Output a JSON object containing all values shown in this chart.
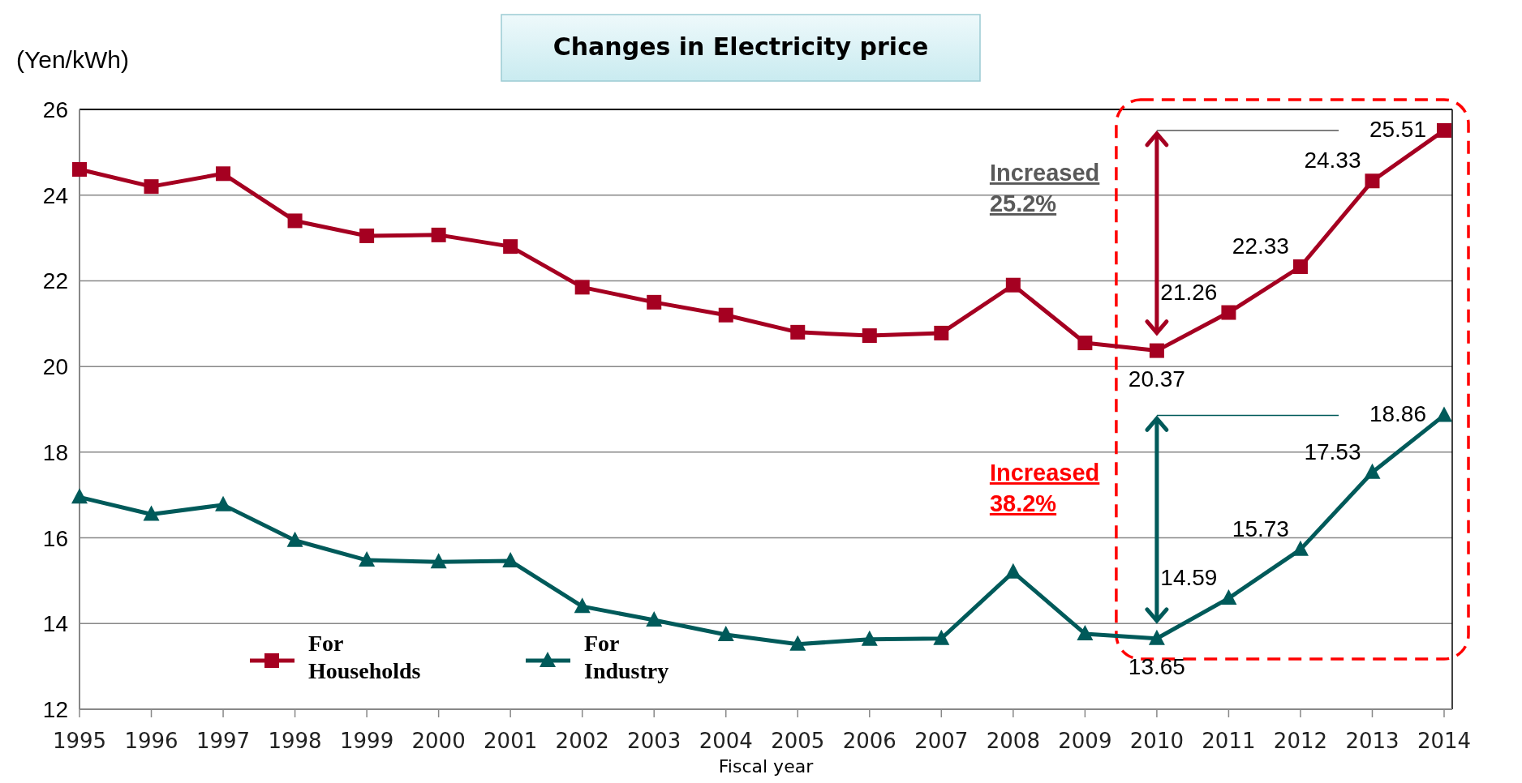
{
  "chart_data": {
    "type": "line",
    "title": "Changes in Electricity price",
    "ylabel": "(Yen/kWh)",
    "xlabel": "Fiscal year",
    "categories": [
      "1995",
      "1996",
      "1997",
      "1998",
      "1999",
      "2000",
      "2001",
      "2002",
      "2003",
      "2004",
      "2005",
      "2006",
      "2007",
      "2008",
      "2009",
      "2010",
      "2011",
      "2012",
      "2013",
      "2014"
    ],
    "series": [
      {
        "name": "For Households",
        "color": "#a50021",
        "marker": "square",
        "values": [
          24.6,
          24.2,
          24.5,
          23.4,
          23.05,
          23.07,
          22.8,
          21.85,
          21.5,
          21.2,
          20.8,
          20.72,
          20.78,
          21.9,
          20.55,
          20.37,
          21.26,
          22.33,
          24.33,
          25.51
        ],
        "value_labels": [
          null,
          null,
          null,
          null,
          null,
          null,
          null,
          null,
          null,
          null,
          null,
          null,
          null,
          null,
          null,
          "20.37",
          "21.26",
          "22.33",
          "24.33",
          "25.51"
        ]
      },
      {
        "name": "For Industry",
        "color": "#005a5a",
        "marker": "triangle",
        "values": [
          16.95,
          16.55,
          16.77,
          15.94,
          15.48,
          15.44,
          15.46,
          14.4,
          14.08,
          13.74,
          13.52,
          13.63,
          13.65,
          15.2,
          13.76,
          13.65,
          14.59,
          15.73,
          17.53,
          18.86
        ],
        "value_labels": [
          null,
          null,
          null,
          null,
          null,
          null,
          null,
          null,
          null,
          null,
          null,
          null,
          null,
          null,
          null,
          "13.65",
          "14.59",
          "15.73",
          "17.53",
          "18.86"
        ]
      }
    ],
    "ylim": [
      12,
      26
    ],
    "yticks": [
      12,
      14,
      16,
      18,
      20,
      22,
      24,
      26
    ],
    "grid": "y",
    "legend": "bottom left",
    "annotations": [
      "Increased 25.2%",
      "Increased 38.2%"
    ]
  }
}
